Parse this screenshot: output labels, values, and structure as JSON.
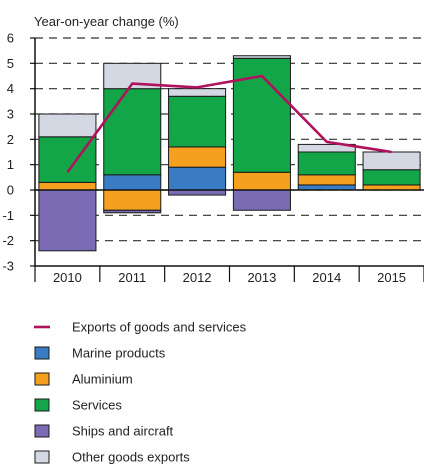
{
  "chart_data": {
    "type": "bar",
    "stacked": true,
    "title": "",
    "ylabel": "Year-on-year change (%)",
    "xlabel": "",
    "ylim": [
      -3,
      6
    ],
    "yticks": [
      -3,
      -2,
      -1,
      0,
      1,
      2,
      3,
      4,
      5,
      6
    ],
    "grid": "dashed-horizontal",
    "legend_position": "bottom",
    "categories": [
      "2010",
      "2011",
      "2012",
      "2013",
      "2014",
      "2015"
    ],
    "series": [
      {
        "name": "Marine products",
        "color": "#3a7cc3",
        "values": [
          0.0,
          0.6,
          0.9,
          0.0,
          0.2,
          0.0
        ]
      },
      {
        "name": "Aluminium",
        "color": "#f5a11f",
        "values": [
          0.3,
          -0.8,
          0.8,
          0.7,
          0.4,
          0.2
        ]
      },
      {
        "name": "Services",
        "color": "#13a648",
        "values": [
          1.8,
          3.4,
          2.0,
          4.5,
          0.9,
          0.6
        ]
      },
      {
        "name": "Ships and aircraft",
        "color": "#7b6bb5",
        "values": [
          -2.4,
          -0.1,
          -0.2,
          -0.8,
          0.0,
          0.0
        ]
      },
      {
        "name": "Other goods exports",
        "color": "#d4d8e3",
        "values": [
          0.9,
          1.0,
          0.3,
          0.1,
          0.3,
          0.7
        ]
      }
    ],
    "line": {
      "name": "Exports of goods and services",
      "color": "#b0125e",
      "values": [
        0.7,
        4.2,
        4.05,
        4.5,
        1.9,
        1.5
      ]
    },
    "legend_order": [
      "Exports of goods and services",
      "Marine products",
      "Aluminium",
      "Services",
      "Ships and aircraft",
      "Other goods exports"
    ]
  }
}
